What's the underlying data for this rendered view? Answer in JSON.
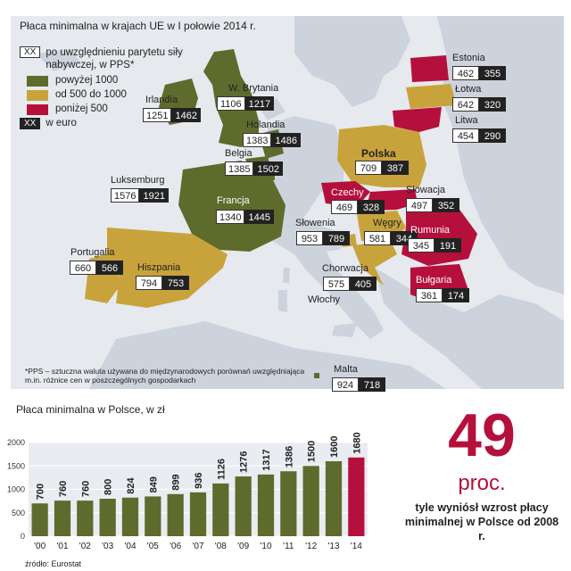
{
  "map": {
    "title": "Płaca minimalna w krajach UE w I połowie 2014 r.",
    "legend": {
      "pps_marker": "XX",
      "pps_label": "po uwzględnieniu parytetu siły nabywczej, w PPS*",
      "cat_high": "powyżej 1000",
      "cat_mid": "od 500 do 1000",
      "cat_low": "poniżej 500",
      "eur_marker": "XX",
      "eur_label": "w euro"
    },
    "colors": {
      "high": "#5e6b2c",
      "mid": "#c8a33c",
      "low": "#b5103c",
      "land": "#cdd3dc",
      "sea": "#ffffff",
      "bg": "#e6e9ee"
    },
    "countries": [
      {
        "name": "Irlandia",
        "pps": "1251",
        "eur": "1462"
      },
      {
        "name": "W. Brytania",
        "pps": "1106",
        "eur": "1217"
      },
      {
        "name": "Holandia",
        "pps": "1383",
        "eur": "1486"
      },
      {
        "name": "Belgia",
        "pps": "1385",
        "eur": "1502"
      },
      {
        "name": "Luksemburg",
        "pps": "1576",
        "eur": "1921"
      },
      {
        "name": "Francja",
        "pps": "1340",
        "eur": "1445"
      },
      {
        "name": "Portugalia",
        "pps": "660",
        "eur": "566"
      },
      {
        "name": "Hiszpania",
        "pps": "794",
        "eur": "753"
      },
      {
        "name": "Estonia",
        "pps": "462",
        "eur": "355"
      },
      {
        "name": "Łotwa",
        "pps": "642",
        "eur": "320"
      },
      {
        "name": "Litwa",
        "pps": "454",
        "eur": "290"
      },
      {
        "name": "Polska",
        "pps": "709",
        "eur": "387"
      },
      {
        "name": "Czechy",
        "pps": "469",
        "eur": "328"
      },
      {
        "name": "Słowacja",
        "pps": "497",
        "eur": "352"
      },
      {
        "name": "Słowenia",
        "pps": "953",
        "eur": "789"
      },
      {
        "name": "Węgry",
        "pps": "581",
        "eur": "344"
      },
      {
        "name": "Rumunia",
        "pps": "345",
        "eur": "191"
      },
      {
        "name": "Chorwacja",
        "pps": "575",
        "eur": "405"
      },
      {
        "name": "Bułgaria",
        "pps": "361",
        "eur": "174"
      },
      {
        "name": "Włochy",
        "pps": null,
        "eur": null
      },
      {
        "name": "Malta",
        "pps": "924",
        "eur": "718"
      }
    ],
    "footnote": "*PPS – sztuczna waluta używana do międzynarodowych porównań uwzględniająca m.in. różnice cen w poszczególnych gospodarkach"
  },
  "chart_data": {
    "type": "bar",
    "title": "Płaca minimalna w Polsce, w zł",
    "categories": [
      "'00",
      "'01",
      "'02",
      "'03",
      "'04",
      "'05",
      "'06",
      "'07",
      "'08",
      "'09",
      "'10",
      "'11",
      "'12",
      "'13",
      "'14"
    ],
    "values": [
      700,
      760,
      760,
      800,
      824,
      849,
      899,
      936,
      1126,
      1276,
      1317,
      1386,
      1500,
      1600,
      1680
    ],
    "value_labels": [
      "700",
      "760",
      "760",
      "800",
      "824",
      "849",
      "899",
      "936",
      "1126",
      "1276",
      "1317",
      "1386",
      "1500",
      "1600",
      "1680"
    ],
    "yticks": [
      0,
      500,
      1000,
      1500,
      2000
    ],
    "ytick_labels": [
      "0",
      "500",
      "1000",
      "1500",
      "2000"
    ],
    "ylim": [
      0,
      2000
    ],
    "xlabel": "",
    "ylabel": "",
    "colors": {
      "default": "#5e6b2c",
      "highlight": "#b5103c"
    },
    "highlight_index": 14
  },
  "source": "źródło: Eurostat",
  "highlight": {
    "number": "49",
    "unit": "proc.",
    "description": "tyle wyniósł wzrost płacy minimalnej w Polsce od 2008 r."
  }
}
